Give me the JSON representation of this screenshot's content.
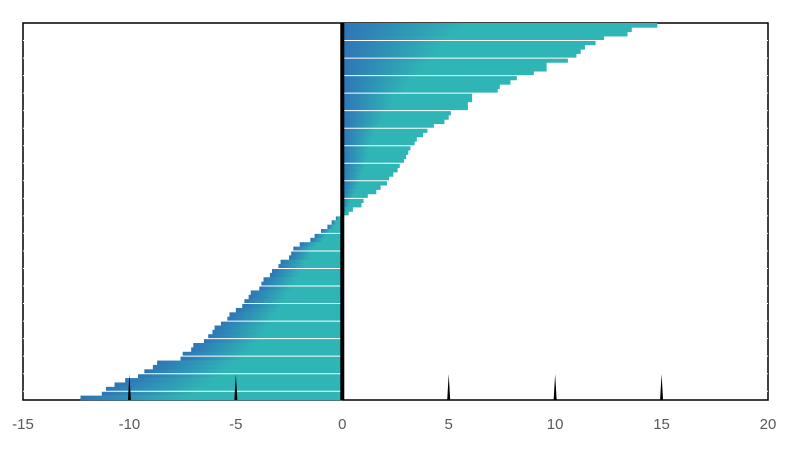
{
  "chart_data": {
    "type": "bar",
    "orientation": "horizontal",
    "title": "",
    "xlabel": "",
    "ylabel": "",
    "xlim": [
      -15,
      20
    ],
    "xticks": [
      -15,
      -10,
      -5,
      0,
      5,
      10,
      15,
      20
    ],
    "xtick_labels": [
      "-15",
      "-10",
      "-5",
      "0",
      "5",
      "10",
      "15",
      "20"
    ],
    "grid": false,
    "legend": "none",
    "sorted": "descending",
    "values": [
      14.8,
      13.6,
      13.4,
      12.3,
      11.9,
      11.4,
      11.2,
      11.0,
      10.6,
      9.6,
      9.6,
      9.0,
      8.2,
      7.9,
      7.4,
      7.3,
      6.1,
      6.1,
      5.9,
      5.9,
      5.1,
      5.0,
      4.8,
      4.3,
      4.0,
      3.8,
      3.5,
      3.4,
      3.2,
      3.1,
      3.0,
      2.9,
      2.7,
      2.6,
      2.4,
      2.2,
      2.1,
      1.8,
      1.6,
      1.2,
      1.0,
      0.9,
      0.5,
      0.3,
      -0.3,
      -0.5,
      -0.7,
      -1.0,
      -1.3,
      -1.5,
      -2.0,
      -2.3,
      -2.4,
      -2.5,
      -2.9,
      -3.0,
      -3.3,
      -3.4,
      -3.7,
      -3.8,
      -3.9,
      -4.3,
      -4.4,
      -4.6,
      -4.7,
      -5.0,
      -5.3,
      -5.4,
      -5.7,
      -6.0,
      -6.1,
      -6.3,
      -6.5,
      -7.0,
      -7.1,
      -7.5,
      -7.6,
      -8.7,
      -8.9,
      -9.3,
      -9.6,
      -10.2,
      -10.7,
      -11.1,
      -11.3,
      -12.3
    ],
    "colors": {
      "bar_dark": "#2e75b6",
      "bar_light": "#2fb5b5",
      "axis": "#000000",
      "zero_line": "#000000",
      "tick_text": "#595959"
    }
  }
}
